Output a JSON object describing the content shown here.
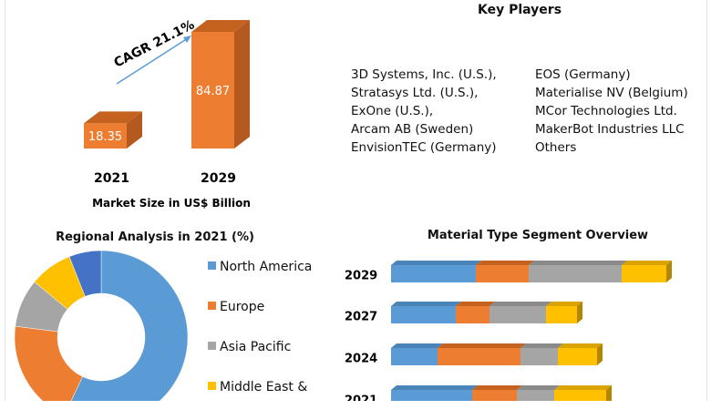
{
  "chart_data": [
    {
      "type": "bar",
      "categories": [
        "2021",
        "2029"
      ],
      "values": [
        18.35,
        84.87
      ],
      "data_labels": [
        "18.35",
        "84.87"
      ],
      "annotation": "CAGR 21.1%",
      "xlabel": "Market Size in US$ Billion",
      "color": "#ed7d31"
    },
    {
      "type": "pie",
      "title": "Regional Analysis in 2021 (%)",
      "donut": true,
      "slices": [
        {
          "label": "North America",
          "value": 57,
          "color": "#5b9bd5"
        },
        {
          "label": "Europe",
          "value": 20,
          "color": "#ed7d31"
        },
        {
          "label": "Asia Pacific",
          "value": 9,
          "color": "#a5a5a5"
        },
        {
          "label": "Middle East &",
          "value": 8,
          "color": "#ffc000"
        },
        {
          "label": "",
          "value": 6,
          "color": "#4472c4"
        }
      ],
      "legend": "right"
    },
    {
      "type": "bar",
      "orientation": "horizontal",
      "stacked": true,
      "title": "Material Type Segment Overview",
      "categories": [
        "2029",
        "2027",
        "2024",
        "2021"
      ],
      "series": [
        {
          "values": [
            93,
            71,
            51,
            89
          ],
          "color": "#5b9bd5"
        },
        {
          "values": [
            58,
            37,
            91,
            49
          ],
          "color": "#ed7d31"
        },
        {
          "values": [
            102,
            62,
            41,
            41
          ],
          "color": "#a5a5a5"
        },
        {
          "values": [
            49,
            34,
            43,
            57
          ],
          "color": "#ffc000"
        }
      ]
    }
  ],
  "key_players": {
    "title": "Key Players",
    "left": [
      "3D Systems, Inc. (U.S.),",
      "Stratasys Ltd. (U.S.),",
      "ExOne (U.S.),",
      "Arcam AB (Sweden)",
      "EnvisionTEC (Germany)"
    ],
    "right": [
      "EOS (Germany)",
      "Materialise NV (Belgium)",
      "MCor Technologies Ltd.",
      "MakerBot Industries LLC",
      "Others"
    ]
  }
}
